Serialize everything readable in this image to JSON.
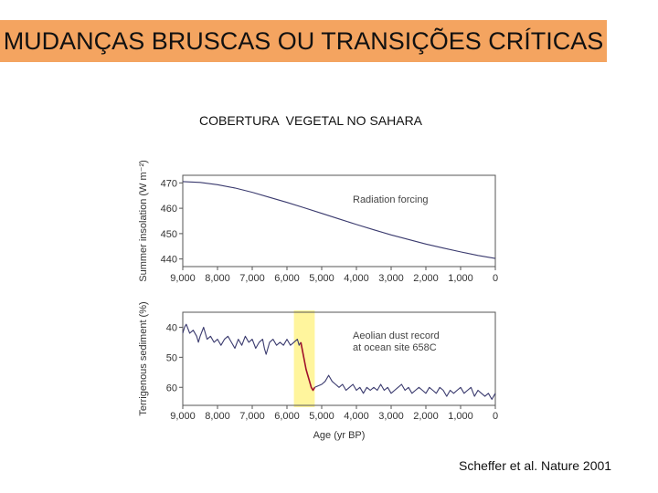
{
  "slide": {
    "title": "MUDANÇAS BRUSCAS OU TRANSIÇÕES CRÍTICAS",
    "subtitle": "COBERTURA  VEGETAL NO SAHARA",
    "citation": "Scheffer et al. Nature 2001",
    "colors": {
      "title_bg": "#f4a460",
      "highlight": "#fff59d",
      "line": "#3a3a6e",
      "transition_line": "#a0102a"
    }
  },
  "chart_data": [
    {
      "type": "line",
      "ylabel": "Summer insolation (W m⁻²)",
      "annotation": "Radiation forcing",
      "xlim": [
        9000,
        0
      ],
      "ylim": [
        437,
        473
      ],
      "x_ticks": [
        "9,000",
        "8,000",
        "7,000",
        "6,000",
        "5,000",
        "4,000",
        "3,000",
        "2,000",
        "1,000",
        "0"
      ],
      "y_ticks": [
        "470",
        "460",
        "450",
        "440"
      ],
      "series": [
        {
          "x": [
            9000,
            8500,
            8000,
            7500,
            7000,
            6500,
            6000,
            5500,
            5000,
            4500,
            4000,
            3500,
            3000,
            2500,
            2000,
            1500,
            1000,
            500,
            0
          ],
          "y": [
            470.5,
            470.2,
            469.3,
            468.0,
            466.3,
            464.3,
            462.3,
            460.2,
            458.0,
            455.8,
            453.6,
            451.5,
            449.5,
            447.7,
            445.9,
            444.3,
            442.8,
            441.4,
            440.2
          ]
        }
      ]
    },
    {
      "type": "line",
      "ylabel": "Terrigenous sediment (%)",
      "xlabel": "Age (yr BP)",
      "annotation": [
        "Aeolian dust record",
        "at ocean site 658C"
      ],
      "xlim": [
        9000,
        0
      ],
      "ylim": [
        66,
        35
      ],
      "y_inverted": true,
      "highlight_range": [
        5800,
        5200
      ],
      "x_ticks": [
        "9,000",
        "8,000",
        "7,000",
        "6,000",
        "5,000",
        "4,000",
        "3,000",
        "2,000",
        "1,000",
        "0"
      ],
      "y_ticks": [
        "40",
        "50",
        "60"
      ],
      "series": [
        {
          "x": [
            9000,
            8950,
            8900,
            8800,
            8700,
            8600,
            8550,
            8500,
            8400,
            8300,
            8200,
            8100,
            8000,
            7900,
            7800,
            7700,
            7600,
            7500,
            7400,
            7300,
            7200,
            7100,
            7000,
            6900,
            6800,
            6700,
            6650,
            6600,
            6500,
            6400,
            6300,
            6200,
            6100,
            6000,
            5900,
            5800,
            5700,
            5650,
            5600
          ],
          "y": [
            42,
            40,
            39,
            42,
            41,
            43,
            45,
            43,
            40,
            44,
            43,
            45,
            44,
            46,
            44,
            43,
            45,
            47,
            44,
            46,
            43,
            45,
            44,
            47,
            45,
            44,
            47,
            49,
            45,
            44,
            46,
            45,
            46,
            44,
            46,
            45,
            44,
            46,
            45
          ]
        },
        {
          "x": [
            5600,
            5550,
            5500,
            5450,
            5400,
            5350,
            5300,
            5250,
            5200
          ],
          "y": [
            45,
            48,
            51,
            54,
            56,
            58,
            60,
            61,
            60
          ]
        },
        {
          "x": [
            5200,
            5000,
            4900,
            4800,
            4700,
            4600,
            4500,
            4400,
            4300,
            4200,
            4100,
            4000,
            3900,
            3800,
            3700,
            3600,
            3500,
            3400,
            3300,
            3200,
            3100,
            3000,
            2900,
            2800,
            2700,
            2600,
            2500,
            2400,
            2300,
            2200,
            2100,
            2000,
            1900,
            1800,
            1700,
            1600,
            1500,
            1400,
            1300,
            1200,
            1100,
            1000,
            900,
            800,
            700,
            600,
            500,
            400,
            300,
            200,
            100,
            0
          ],
          "y": [
            60,
            59,
            58,
            56,
            58,
            59,
            60,
            59,
            61,
            60,
            59,
            61,
            60,
            62,
            60,
            61,
            60,
            61,
            59,
            61,
            60,
            62,
            61,
            60,
            59,
            61,
            60,
            62,
            61,
            60,
            61,
            62,
            60,
            61,
            62,
            60,
            61,
            63,
            61,
            62,
            61,
            60,
            62,
            61,
            60,
            63,
            61,
            62,
            63,
            62,
            64,
            62
          ]
        }
      ]
    }
  ]
}
